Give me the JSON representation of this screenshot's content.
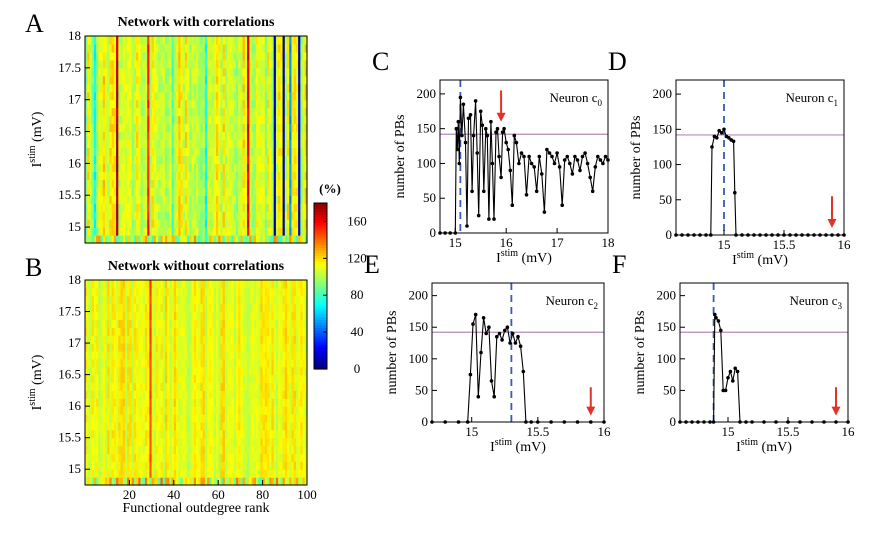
{
  "chart_data": [
    {
      "id": "A",
      "type": "heatmap",
      "panel_letter": "A",
      "title": "Network with correlations",
      "ylabel": "I",
      "ylabel_sup": "stim",
      "ylabel_unit": " (mV)",
      "xlabel": "",
      "xlim": [
        0,
        100
      ],
      "ylim": [
        14.75,
        18
      ],
      "y_ticks": [
        "15",
        "15.5",
        "16",
        "16.5",
        "17",
        "17.5",
        "18"
      ],
      "y_tick_values": [
        15,
        15.5,
        16,
        16.5,
        17,
        17.5,
        18
      ],
      "x_ticks": [],
      "value_range": [
        0,
        180
      ],
      "base_value": 105,
      "hot_columns": [
        {
          "rank": 15,
          "value": 170
        },
        {
          "rank": 29,
          "value": 150
        },
        {
          "rank": 74,
          "value": 160
        }
      ],
      "cold_columns": [
        {
          "rank": 5,
          "value": 70
        },
        {
          "rank": 40,
          "value": 80
        },
        {
          "rank": 55,
          "value": 70
        },
        {
          "rank": 86,
          "value": 10
        },
        {
          "rank": 90,
          "value": 5
        },
        {
          "rank": 93,
          "value": 50
        },
        {
          "rank": 97,
          "value": 15
        }
      ]
    },
    {
      "id": "B",
      "type": "heatmap",
      "panel_letter": "B",
      "title": "Network without correlations",
      "ylabel": "I",
      "ylabel_sup": "stim",
      "ylabel_unit": " (mV)",
      "xlabel": "Functional outdegree rank",
      "xlim": [
        0,
        100
      ],
      "ylim": [
        14.75,
        18
      ],
      "y_ticks": [
        "15",
        "15.5",
        "16",
        "16.5",
        "17",
        "17.5",
        "18"
      ],
      "y_tick_values": [
        15,
        15.5,
        16,
        16.5,
        17,
        17.5,
        18
      ],
      "x_ticks": [
        "20",
        "40",
        "60",
        "80",
        "100"
      ],
      "x_tick_values": [
        20,
        40,
        60,
        80,
        100
      ],
      "value_range": [
        0,
        180
      ],
      "base_value": 110,
      "hot_columns": [
        {
          "rank": 30,
          "value": 145
        }
      ]
    },
    {
      "id": "colorbar",
      "type": "colorbar",
      "label": "(%)",
      "ticks": [
        "0",
        "40",
        "80",
        "120",
        "160"
      ],
      "tick_values": [
        0,
        40,
        80,
        120,
        160
      ],
      "range": [
        0,
        180
      ]
    },
    {
      "id": "C",
      "type": "line",
      "panel_letter": "C",
      "annotation": "Neuron c",
      "annotation_sub": "0",
      "xlabel": "I",
      "xlabel_sup": "stim",
      "xlabel_unit": " (mV)",
      "ylabel": "number of PBs",
      "xlim": [
        14.7,
        18
      ],
      "ylim": [
        0,
        220
      ],
      "x_ticks": [
        "15",
        "16",
        "17",
        "18"
      ],
      "x_tick_values": [
        15,
        16,
        17,
        18
      ],
      "y_ticks": [
        "0",
        "50",
        "100",
        "150",
        "200"
      ],
      "y_tick_values": [
        0,
        50,
        100,
        150,
        200
      ],
      "hline": 142,
      "vline": 15.1,
      "arrow_x": 15.9,
      "arrow_tip_y": 160,
      "arrow_tail_y": 205,
      "x": [
        14.7,
        14.8,
        14.9,
        15.0,
        15.02,
        15.04,
        15.06,
        15.08,
        15.1,
        15.13,
        15.16,
        15.2,
        15.23,
        15.26,
        15.3,
        15.33,
        15.36,
        15.4,
        15.43,
        15.46,
        15.5,
        15.53,
        15.56,
        15.6,
        15.63,
        15.66,
        15.7,
        15.73,
        15.76,
        15.8,
        15.83,
        15.86,
        15.9,
        15.93,
        15.96,
        16.0,
        16.04,
        16.08,
        16.12,
        16.16,
        16.2,
        16.25,
        16.3,
        16.35,
        16.4,
        16.45,
        16.5,
        16.55,
        16.6,
        16.65,
        16.7,
        16.75,
        16.8,
        16.85,
        16.9,
        16.95,
        17.0,
        17.05,
        17.1,
        17.15,
        17.2,
        17.25,
        17.3,
        17.35,
        17.4,
        17.45,
        17.5,
        17.55,
        17.6,
        17.65,
        17.7,
        17.75,
        17.8,
        17.85,
        17.9,
        17.95,
        18.0
      ],
      "y": [
        0,
        0,
        0,
        0,
        150,
        120,
        160,
        100,
        195,
        140,
        185,
        130,
        10,
        165,
        170,
        60,
        140,
        190,
        115,
        25,
        175,
        155,
        60,
        150,
        140,
        20,
        160,
        100,
        20,
        145,
        150,
        110,
        80,
        145,
        150,
        130,
        120,
        90,
        40,
        140,
        130,
        100,
        115,
        110,
        55,
        110,
        100,
        95,
        60,
        110,
        85,
        30,
        120,
        115,
        110,
        100,
        115,
        95,
        40,
        105,
        110,
        100,
        85,
        110,
        105,
        90,
        110,
        115,
        100,
        80,
        60,
        95,
        110,
        105,
        100,
        110,
        105
      ]
    },
    {
      "id": "D",
      "type": "line",
      "panel_letter": "D",
      "annotation": "Neuron c",
      "annotation_sub": "1",
      "xlabel": "I",
      "xlabel_sup": "stim",
      "xlabel_unit": " (mV)",
      "ylabel": "number of PBs",
      "xlim": [
        14.6,
        16
      ],
      "ylim": [
        0,
        220
      ],
      "x_ticks": [
        "15",
        "15.5",
        "16"
      ],
      "x_tick_values": [
        15,
        15.5,
        16
      ],
      "y_ticks": [
        "0",
        "50",
        "100",
        "150",
        "200"
      ],
      "y_tick_values": [
        0,
        50,
        100,
        150,
        200
      ],
      "hline": 142,
      "vline": 15.0,
      "arrow_x": 15.9,
      "arrow_tip_y": 10,
      "arrow_tail_y": 55,
      "x": [
        14.6,
        14.65,
        14.7,
        14.75,
        14.8,
        14.85,
        14.89,
        14.9,
        14.92,
        14.94,
        14.96,
        14.98,
        15.0,
        15.02,
        15.04,
        15.06,
        15.08,
        15.09,
        15.1,
        15.15,
        15.2,
        15.25,
        15.3,
        15.35,
        15.4,
        15.45,
        15.5,
        15.55,
        15.6,
        15.65,
        15.7,
        15.75,
        15.8,
        15.85,
        15.9,
        15.95,
        16.0
      ],
      "y": [
        0,
        0,
        0,
        0,
        0,
        0,
        0,
        125,
        140,
        138,
        148,
        145,
        150,
        140,
        138,
        135,
        133,
        60,
        0,
        0,
        0,
        0,
        0,
        0,
        0,
        0,
        0,
        0,
        0,
        0,
        0,
        0,
        0,
        0,
        0,
        0,
        0
      ]
    },
    {
      "id": "E",
      "type": "line",
      "panel_letter": "E",
      "annotation": "Neuron c",
      "annotation_sub": "2",
      "xlabel": "I",
      "xlabel_sup": "stim",
      "xlabel_unit": " (mV)",
      "ylabel": "number of PBs",
      "xlim": [
        14.7,
        16
      ],
      "ylim": [
        0,
        220
      ],
      "x_ticks": [
        "15",
        "15.5",
        "16"
      ],
      "x_tick_values": [
        15,
        15.5,
        16
      ],
      "y_ticks": [
        "0",
        "50",
        "100",
        "150",
        "200"
      ],
      "y_tick_values": [
        0,
        50,
        100,
        150,
        200
      ],
      "hline": 142,
      "vline": 15.3,
      "arrow_x": 15.9,
      "arrow_tip_y": 10,
      "arrow_tail_y": 55,
      "x": [
        14.7,
        14.8,
        14.9,
        14.97,
        14.99,
        15.01,
        15.03,
        15.05,
        15.07,
        15.09,
        15.11,
        15.13,
        15.15,
        15.17,
        15.19,
        15.21,
        15.23,
        15.25,
        15.27,
        15.29,
        15.31,
        15.33,
        15.35,
        15.37,
        15.39,
        15.41,
        15.45,
        15.5,
        15.6,
        15.7,
        15.8,
        15.9,
        16.0
      ],
      "y": [
        0,
        0,
        0,
        0,
        75,
        155,
        170,
        40,
        110,
        165,
        140,
        150,
        65,
        40,
        135,
        140,
        130,
        145,
        150,
        125,
        140,
        125,
        135,
        120,
        80,
        0,
        0,
        0,
        0,
        0,
        0,
        0,
        0
      ]
    },
    {
      "id": "F",
      "type": "line",
      "panel_letter": "F",
      "annotation": "Neuron c",
      "annotation_sub": "3",
      "xlabel": "I",
      "xlabel_sup": "stim",
      "xlabel_unit": " (mV)",
      "ylabel": "number of PBs",
      "xlim": [
        14.6,
        16
      ],
      "ylim": [
        0,
        220
      ],
      "x_ticks": [
        "15",
        "15.5",
        "16"
      ],
      "x_tick_values": [
        15,
        15.5,
        16
      ],
      "y_ticks": [
        "0",
        "50",
        "100",
        "150",
        "200"
      ],
      "y_tick_values": [
        0,
        50,
        100,
        150,
        200
      ],
      "hline": 142,
      "vline": 14.88,
      "arrow_x": 15.9,
      "arrow_tip_y": 10,
      "arrow_tail_y": 55,
      "x": [
        14.6,
        14.65,
        14.7,
        14.75,
        14.8,
        14.85,
        14.88,
        14.89,
        14.9,
        14.92,
        14.94,
        14.96,
        14.98,
        15.0,
        15.02,
        15.04,
        15.06,
        15.08,
        15.1,
        15.15,
        15.2,
        15.3,
        15.4,
        15.5,
        15.6,
        15.7,
        15.8,
        15.9,
        16.0
      ],
      "y": [
        0,
        0,
        0,
        0,
        0,
        0,
        0,
        170,
        165,
        160,
        145,
        50,
        50,
        70,
        80,
        65,
        85,
        80,
        0,
        0,
        0,
        0,
        0,
        0,
        0,
        0,
        0,
        0,
        0
      ]
    }
  ]
}
